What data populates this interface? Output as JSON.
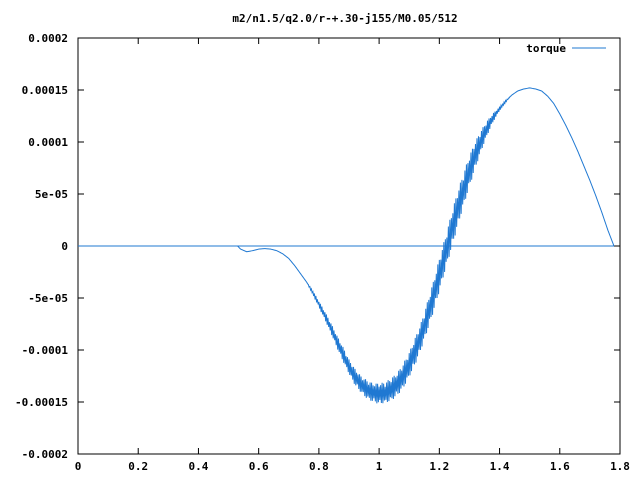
{
  "chart_data": {
    "type": "line",
    "title": "m2/n1.5/q2.0/r-+.30-j155/M0.05/512",
    "xlabel": "",
    "ylabel": "",
    "xlim": [
      0,
      1.8
    ],
    "ylim": [
      -0.0002,
      0.0002
    ],
    "grid": false,
    "legend_position": "top-right",
    "x_ticks": [
      0,
      0.2,
      0.4,
      0.6,
      0.8,
      1.0,
      1.2,
      1.4,
      1.6,
      1.8
    ],
    "x_tick_labels": [
      "0",
      "0.2",
      "0.4",
      "0.6",
      "0.8",
      "1",
      "1.2",
      "1.4",
      "1.6",
      "1.8"
    ],
    "y_ticks": [
      -0.0002,
      -0.00015,
      -0.0001,
      -5e-05,
      0,
      5e-05,
      0.0001,
      0.00015,
      0.0002
    ],
    "y_tick_labels": [
      "-0.0002",
      "-0.00015",
      "-0.0001",
      "-5e-05",
      "0",
      "5e-05",
      "0.0001",
      "0.00015",
      "0.0002"
    ],
    "series": [
      {
        "name": "torque",
        "color": "#1f78d2",
        "x": [
          0,
          0.53,
          0.54,
          0.56,
          0.58,
          0.6,
          0.62,
          0.64,
          0.66,
          0.68,
          0.7,
          0.72,
          0.74,
          0.76,
          0.78,
          0.8,
          0.82,
          0.84,
          0.86,
          0.88,
          0.9,
          0.92,
          0.94,
          0.96,
          0.98,
          1.0,
          1.02,
          1.04,
          1.06,
          1.08,
          1.1,
          1.12,
          1.14,
          1.16,
          1.18,
          1.2,
          1.22,
          1.24,
          1.26,
          1.28,
          1.3,
          1.32,
          1.34,
          1.36,
          1.38,
          1.4,
          1.42,
          1.44,
          1.46,
          1.48,
          1.5,
          1.52,
          1.54,
          1.56,
          1.58,
          1.6,
          1.62,
          1.64,
          1.66,
          1.68,
          1.7,
          1.72,
          1.74,
          1.76,
          1.78
        ],
        "y": [
          0,
          0,
          -3e-06,
          -5.5e-06,
          -4.5e-06,
          -3e-06,
          -2.5e-06,
          -3e-06,
          -4.5e-06,
          -7.5e-06,
          -1.2e-05,
          -1.9e-05,
          -2.7e-05,
          -3.5e-05,
          -4.5e-05,
          -5.6e-05,
          -6.7e-05,
          -7.9e-05,
          -9.2e-05,
          -0.000104,
          -0.000116,
          -0.000126,
          -0.000133,
          -0.000138,
          -0.000141,
          -0.000142,
          -0.000141,
          -0.000138,
          -0.000133,
          -0.000125,
          -0.000114,
          -0.000101,
          -8.6e-05,
          -6.8e-05,
          -4.9e-05,
          -2.8e-05,
          -7e-06,
          1.4e-05,
          3.5e-05,
          5.4e-05,
          7.2e-05,
          8.8e-05,
          0.000102,
          0.000114,
          0.000124,
          0.000132,
          0.000139,
          0.000145,
          0.000149,
          0.000151,
          0.000152,
          0.000151,
          0.000149,
          0.000144,
          0.000137,
          0.000127,
          0.000116,
          0.000104,
          9.1e-05,
          7.7e-05,
          6.3e-05,
          4.8e-05,
          3.2e-05,
          1.5e-05,
          0
        ],
        "noise_amplitude": [
          0,
          0,
          0,
          0,
          0,
          0,
          0,
          0,
          0,
          0,
          0,
          0,
          0,
          0,
          2e-06,
          3e-06,
          4e-06,
          5e-06,
          6e-06,
          7e-06,
          7e-06,
          8e-06,
          8e-06,
          9e-06,
          9e-06,
          1e-05,
          1e-05,
          1.1e-05,
          1.1e-05,
          1.2e-05,
          1.2e-05,
          1.3e-05,
          1.3e-05,
          1.4e-05,
          1.5e-05,
          1.6e-05,
          1.6e-05,
          1.7e-05,
          1.7e-05,
          1.6e-05,
          1.5e-05,
          1.3e-05,
          1e-05,
          7e-06,
          4e-06,
          2e-06,
          1e-06,
          0,
          0,
          0,
          0,
          0,
          0,
          0,
          0,
          0,
          0,
          0,
          0,
          0,
          0,
          0,
          0,
          0,
          0
        ]
      },
      {
        "name": "",
        "color": "#1f78d2",
        "x": [
          0,
          1.78
        ],
        "y": [
          0,
          0
        ]
      }
    ]
  }
}
